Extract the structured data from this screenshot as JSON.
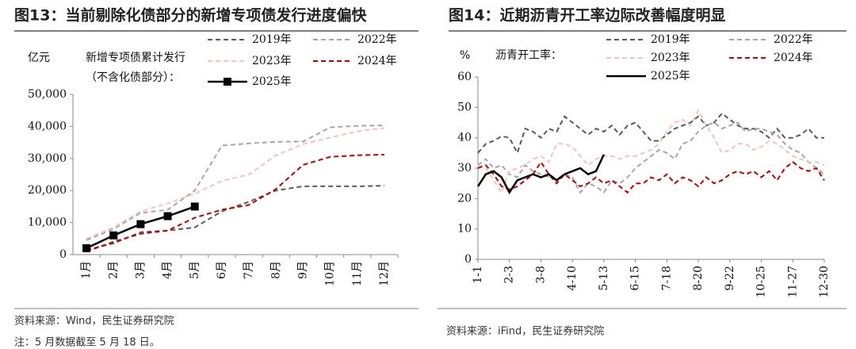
{
  "chart_data": [
    {
      "type": "line",
      "title": "图13：当前剔除化债部分的新增专项债发行进度偏快",
      "y_label": "亿元",
      "annotation": [
        "新增专项债累计发行",
        "（不含化债部分）："
      ],
      "categories": [
        "1月",
        "2月",
        "3月",
        "4月",
        "5月",
        "6月",
        "7月",
        "8月",
        "9月",
        "10月",
        "11月",
        "12月"
      ],
      "ylim": [
        0,
        50000
      ],
      "yticks": [
        0,
        {
          "value": 10000,
          "label": "10,000"
        },
        {
          "value": 20000,
          "label": "20,000"
        },
        {
          "value": 30000,
          "label": "30,000"
        },
        {
          "value": 40000,
          "label": "40,000"
        },
        {
          "value": 50000,
          "label": "50,000"
        }
      ],
      "series": [
        {
          "name": "2019年",
          "color": "#595959",
          "style": "dashed",
          "values": [
            1500,
            3500,
            7000,
            7500,
            8500,
            13500,
            16500,
            20000,
            21300,
            21300,
            21300,
            21500
          ]
        },
        {
          "name": "2022年",
          "color": "#a6a6a6",
          "style": "dashed",
          "values": [
            4500,
            8000,
            13000,
            14000,
            20000,
            34000,
            34700,
            35200,
            35300,
            39700,
            40200,
            40300
          ]
        },
        {
          "name": "2023年",
          "color": "#f2c4c0",
          "style": "dashed",
          "values": [
            5000,
            8500,
            13500,
            16000,
            19000,
            23000,
            25000,
            31000,
            34500,
            36500,
            38500,
            39500
          ]
        },
        {
          "name": "2024年",
          "color": "#c00000",
          "style": "dashed",
          "values": [
            1000,
            4000,
            6500,
            7500,
            11500,
            14000,
            15500,
            20500,
            28000,
            30500,
            31000,
            31200
          ]
        },
        {
          "name": "2025年",
          "color": "#000000",
          "style": "solid",
          "markers": true,
          "values": [
            2000,
            6000,
            9500,
            12000,
            15000,
            null,
            null,
            null,
            null,
            null,
            null,
            null
          ]
        }
      ],
      "source": "资料来源：Wind，民生证券研究院",
      "note": "注：5 月数据截至 5 月 18 日。"
    },
    {
      "type": "line",
      "title": "图14：近期沥青开工率边际改善幅度明显",
      "y_label": "%",
      "annotation": [
        "沥青开工率："
      ],
      "categories": [
        "1-1",
        null,
        null,
        null,
        "2-3",
        null,
        null,
        null,
        "3-8",
        null,
        null,
        null,
        "4-10",
        null,
        null,
        null,
        "5-13",
        null,
        null,
        null,
        "6-15",
        null,
        null,
        null,
        "7-18",
        null,
        null,
        null,
        "8-20",
        null,
        null,
        null,
        "9-22",
        null,
        null,
        null,
        "10-25",
        null,
        null,
        null,
        "11-27",
        null,
        null,
        null,
        "12-30"
      ],
      "ylim": [
        0,
        60
      ],
      "yticks": [
        0,
        10,
        20,
        30,
        40,
        50,
        60
      ],
      "series": [
        {
          "name": "2019年",
          "color": "#595959",
          "style": "dashed",
          "values": [
            35,
            38,
            39,
            40.5,
            40,
            35,
            43,
            42,
            40,
            43,
            42,
            47,
            45,
            43,
            41,
            43,
            42,
            44,
            41,
            44,
            45,
            42,
            39,
            39,
            41,
            43,
            44,
            45,
            47,
            44,
            45,
            48,
            46,
            44,
            43,
            43,
            42,
            40,
            43,
            40,
            40,
            41,
            43,
            40,
            40
          ]
        },
        {
          "name": "2022年",
          "color": "#a6a6a6",
          "style": "dashed",
          "values": [
            31,
            33,
            30,
            31,
            28,
            27,
            31,
            29,
            28,
            27,
            26,
            28,
            27,
            22,
            25,
            24,
            22,
            26,
            25,
            27,
            30,
            32,
            34,
            36,
            35,
            33,
            38,
            39,
            42,
            44,
            45,
            43,
            44,
            45,
            42,
            43,
            43,
            42,
            41,
            38,
            36,
            35,
            32,
            30,
            28
          ]
        },
        {
          "name": "2023年",
          "color": "#f2c4c0",
          "style": "dashed",
          "values": [
            31,
            30,
            26,
            22,
            29,
            30,
            31,
            33,
            34,
            32,
            38,
            38,
            37,
            34,
            31,
            33,
            34,
            34,
            33,
            34,
            34,
            35,
            36,
            38,
            42,
            45,
            46,
            44,
            49,
            44,
            40,
            35,
            36,
            38,
            38,
            36,
            37,
            39,
            38,
            36,
            34,
            33,
            32,
            32,
            31
          ]
        },
        {
          "name": "2024年",
          "color": "#c00000",
          "style": "dashed",
          "values": [
            30,
            31,
            28,
            24,
            23,
            24,
            26,
            28,
            32,
            28,
            25,
            28,
            26,
            24,
            25,
            27,
            25,
            26,
            24,
            22,
            25,
            25,
            27,
            26,
            28,
            25,
            27,
            26,
            24,
            27,
            25,
            26,
            28,
            29,
            28,
            29,
            27,
            29,
            26,
            30,
            32,
            30,
            29,
            30,
            26
          ]
        },
        {
          "name": "2025年",
          "color": "#000000",
          "style": "solid",
          "values": [
            24,
            28,
            29,
            27,
            22,
            26,
            27,
            28,
            27,
            28,
            26,
            28,
            29,
            30,
            28,
            29,
            34.5,
            null,
            null,
            null,
            null,
            null,
            null,
            null,
            null,
            null,
            null,
            null,
            null,
            null,
            null,
            null,
            null,
            null,
            null,
            null,
            null,
            null,
            null,
            null,
            null,
            null,
            null,
            null,
            null
          ]
        }
      ],
      "source": "资料来源：iFind，民生证券研究院"
    }
  ]
}
